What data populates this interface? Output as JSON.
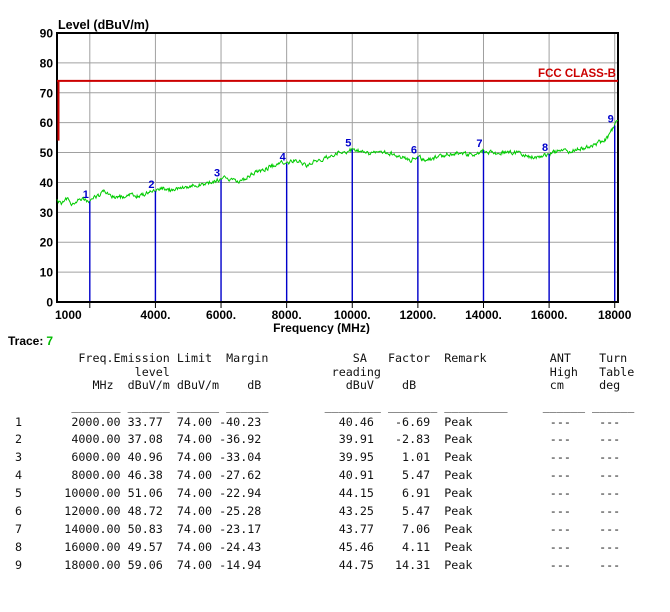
{
  "trace_caption": {
    "prefix": "Trace:",
    "value": "7"
  },
  "chart_data": {
    "type": "line",
    "title": "Level (dBuV/m)",
    "xlabel": "Frequency (MHz)",
    "xlim": [
      1000,
      18100
    ],
    "ylim": [
      0,
      90
    ],
    "grid": true,
    "y_ticks": [
      0,
      10,
      20,
      30,
      40,
      50,
      60,
      70,
      80,
      90
    ],
    "x_ticks": [
      {
        "f": 1000,
        "label": "1000"
      },
      {
        "f": 4000,
        "label": "4000."
      },
      {
        "f": 6000,
        "label": "6000."
      },
      {
        "f": 8000,
        "label": "8000."
      },
      {
        "f": 10000,
        "label": "10000."
      },
      {
        "f": 12000,
        "label": "12000."
      },
      {
        "f": 14000,
        "label": "14000."
      },
      {
        "f": 16000,
        "label": "16000."
      },
      {
        "f": 18000,
        "label": "18000"
      }
    ],
    "gridline_freqs": [
      2000,
      4000,
      6000,
      8000,
      10000,
      12000,
      14000,
      16000,
      18000
    ],
    "colors": {
      "trace": "#00cc00",
      "marker": "#0000cc",
      "limit": "#cc0000",
      "grid": "#a0a0a0",
      "axis": "#000000"
    },
    "limit_line": {
      "label": "FCC CLASS-B",
      "level": 74,
      "left_edge_drop_to": 54
    },
    "series": [
      {
        "name": "Trace 7",
        "color": "#00cc00"
      }
    ],
    "markers": [
      {
        "n": "1",
        "freq": 2000,
        "level": 33.77
      },
      {
        "n": "2",
        "freq": 4000,
        "level": 37.08
      },
      {
        "n": "3",
        "freq": 6000,
        "level": 40.96
      },
      {
        "n": "4",
        "freq": 8000,
        "level": 46.38
      },
      {
        "n": "5",
        "freq": 10000,
        "level": 51.06
      },
      {
        "n": "6",
        "freq": 12000,
        "level": 48.72
      },
      {
        "n": "7",
        "freq": 14000,
        "level": 50.83
      },
      {
        "n": "8",
        "freq": 16000,
        "level": 49.57
      },
      {
        "n": "9",
        "freq": 18000,
        "level": 59.06
      }
    ],
    "trace_anchors": [
      [
        1000,
        34
      ],
      [
        1150,
        33
      ],
      [
        1300,
        34.5
      ],
      [
        1450,
        32.8
      ],
      [
        1600,
        34
      ],
      [
        1750,
        34.8
      ],
      [
        1900,
        34
      ],
      [
        2000,
        33.8
      ],
      [
        2150,
        35
      ],
      [
        2300,
        35.8
      ],
      [
        2450,
        37
      ],
      [
        2600,
        36.2
      ],
      [
        2750,
        34.6
      ],
      [
        2900,
        35
      ],
      [
        3100,
        35.6
      ],
      [
        3300,
        36.2
      ],
      [
        3500,
        35.4
      ],
      [
        3700,
        36.4
      ],
      [
        3900,
        36.8
      ],
      [
        4000,
        37.1
      ],
      [
        4200,
        38.4
      ],
      [
        4400,
        37.2
      ],
      [
        4600,
        37.6
      ],
      [
        4800,
        38.3
      ],
      [
        5000,
        38.6
      ],
      [
        5200,
        39.2
      ],
      [
        5400,
        39
      ],
      [
        5600,
        39.8
      ],
      [
        5800,
        40.2
      ],
      [
        6000,
        41
      ],
      [
        6200,
        41.6
      ],
      [
        6400,
        40.6
      ],
      [
        6600,
        40.2
      ],
      [
        6800,
        41.8
      ],
      [
        7000,
        43.2
      ],
      [
        7200,
        44
      ],
      [
        7400,
        44.8
      ],
      [
        7600,
        45.6
      ],
      [
        7800,
        46.6
      ],
      [
        8000,
        46.4
      ],
      [
        8200,
        47.4
      ],
      [
        8400,
        47
      ],
      [
        8600,
        45.8
      ],
      [
        8800,
        46.6
      ],
      [
        9000,
        47.8
      ],
      [
        9200,
        48.4
      ],
      [
        9400,
        49.4
      ],
      [
        9600,
        50.2
      ],
      [
        9800,
        50
      ],
      [
        10000,
        51.1
      ],
      [
        10200,
        50.6
      ],
      [
        10400,
        50
      ],
      [
        10600,
        49.6
      ],
      [
        10800,
        49.8
      ],
      [
        11000,
        50.2
      ],
      [
        11200,
        49.6
      ],
      [
        11400,
        48.6
      ],
      [
        11600,
        48.2
      ],
      [
        11800,
        47.4
      ],
      [
        12000,
        48.7
      ],
      [
        12200,
        47.6
      ],
      [
        12400,
        47.8
      ],
      [
        12600,
        48.6
      ],
      [
        12800,
        49.2
      ],
      [
        13000,
        49.6
      ],
      [
        13200,
        50
      ],
      [
        13400,
        49.6
      ],
      [
        13600,
        49.2
      ],
      [
        13800,
        49.8
      ],
      [
        14000,
        50.8
      ],
      [
        14200,
        50
      ],
      [
        14400,
        49.4
      ],
      [
        14600,
        49.8
      ],
      [
        14800,
        50.2
      ],
      [
        15000,
        49.8
      ],
      [
        15200,
        49.4
      ],
      [
        15400,
        48.6
      ],
      [
        15600,
        48.2
      ],
      [
        15800,
        49
      ],
      [
        16000,
        49.6
      ],
      [
        16200,
        50.2
      ],
      [
        16400,
        50.6
      ],
      [
        16600,
        50.4
      ],
      [
        16800,
        51
      ],
      [
        17000,
        51.4
      ],
      [
        17200,
        52
      ],
      [
        17400,
        52.6
      ],
      [
        17600,
        53.6
      ],
      [
        17800,
        55.2
      ],
      [
        18000,
        59.1
      ],
      [
        18100,
        60.2
      ]
    ]
  },
  "table": {
    "header_lines": [
      [
        "Freq.",
        "Emission",
        "Limit",
        "Margin",
        "SA",
        "Factor",
        "Remark",
        "ANT",
        "Turn"
      ],
      [
        "level",
        "reading",
        "High",
        "Table"
      ],
      [
        "MHz",
        "dBuV/m",
        "dBuV/m",
        "dB",
        "dBuV",
        "dB",
        "cm",
        "deg"
      ]
    ],
    "rows": [
      {
        "no": "1",
        "freq": "2000.00",
        "emission": "33.77",
        "limit": "74.00",
        "margin": "-40.23",
        "sa": "40.46",
        "factor": "-6.69",
        "remark": "Peak",
        "ant": "---",
        "turn": "---"
      },
      {
        "no": "2",
        "freq": "4000.00",
        "emission": "37.08",
        "limit": "74.00",
        "margin": "-36.92",
        "sa": "39.91",
        "factor": "-2.83",
        "remark": "Peak",
        "ant": "---",
        "turn": "---"
      },
      {
        "no": "3",
        "freq": "6000.00",
        "emission": "40.96",
        "limit": "74.00",
        "margin": "-33.04",
        "sa": "39.95",
        "factor": "1.01",
        "remark": "Peak",
        "ant": "---",
        "turn": "---"
      },
      {
        "no": "4",
        "freq": "8000.00",
        "emission": "46.38",
        "limit": "74.00",
        "margin": "-27.62",
        "sa": "40.91",
        "factor": "5.47",
        "remark": "Peak",
        "ant": "---",
        "turn": "---"
      },
      {
        "no": "5",
        "freq": "10000.00",
        "emission": "51.06",
        "limit": "74.00",
        "margin": "-22.94",
        "sa": "44.15",
        "factor": "6.91",
        "remark": "Peak",
        "ant": "---",
        "turn": "---"
      },
      {
        "no": "6",
        "freq": "12000.00",
        "emission": "48.72",
        "limit": "74.00",
        "margin": "-25.28",
        "sa": "43.25",
        "factor": "5.47",
        "remark": "Peak",
        "ant": "---",
        "turn": "---"
      },
      {
        "no": "7",
        "freq": "14000.00",
        "emission": "50.83",
        "limit": "74.00",
        "margin": "-23.17",
        "sa": "43.77",
        "factor": "7.06",
        "remark": "Peak",
        "ant": "---",
        "turn": "---"
      },
      {
        "no": "8",
        "freq": "16000.00",
        "emission": "49.57",
        "limit": "74.00",
        "margin": "-24.43",
        "sa": "45.46",
        "factor": "4.11",
        "remark": "Peak",
        "ant": "---",
        "turn": "---"
      },
      {
        "no": "9",
        "freq": "18000.00",
        "emission": "59.06",
        "limit": "74.00",
        "margin": "-14.94",
        "sa": "44.75",
        "factor": "14.31",
        "remark": "Peak",
        "ant": "---",
        "turn": "---"
      }
    ]
  }
}
